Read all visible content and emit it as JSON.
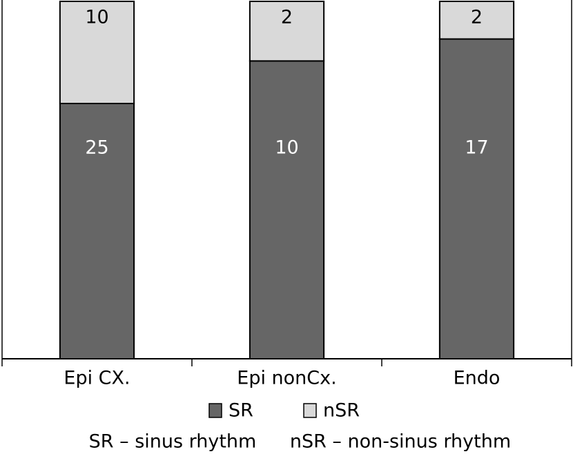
{
  "chart_data": {
    "type": "bar",
    "stacking": "percent",
    "categories": [
      "Epi CX.",
      "Epi nonCx.",
      "Endo"
    ],
    "series": [
      {
        "name": "SR",
        "color": "#666666",
        "values": [
          25,
          10,
          17
        ]
      },
      {
        "name": "nSR",
        "color": "#d9d9d9",
        "values": [
          10,
          2,
          2
        ]
      }
    ],
    "notes": [
      "SR – sinus rhythm",
      "nSR – non-sinus rhythm"
    ]
  }
}
